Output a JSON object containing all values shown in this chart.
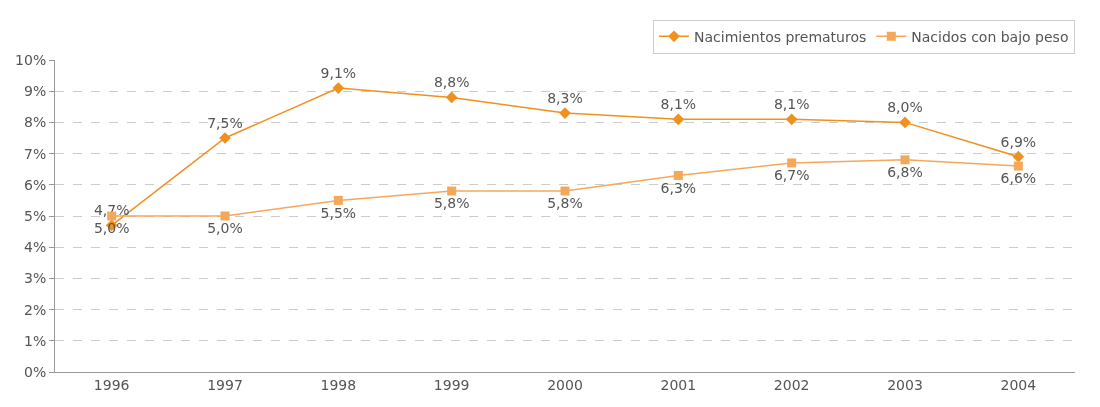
{
  "chart_data": {
    "type": "line",
    "categories": [
      "1996",
      "1997",
      "1998",
      "1999",
      "2000",
      "2001",
      "2002",
      "2003",
      "2004"
    ],
    "series": [
      {
        "name": "Nacimientos prematuros",
        "color": "#f0901e",
        "marker": "diamond",
        "values": [
          4.7,
          7.5,
          9.1,
          8.8,
          8.3,
          8.1,
          8.1,
          8.0,
          6.9
        ],
        "value_labels": [
          "4,7%",
          "7,5%",
          "9,1%",
          "8,8%",
          "8,3%",
          "8,1%",
          "8,1%",
          "8,0%",
          "6,9%"
        ]
      },
      {
        "name": "Nacidos con bajo peso",
        "color": "#f5a85a",
        "marker": "square",
        "values": [
          5.0,
          5.0,
          5.5,
          5.8,
          5.8,
          6.3,
          6.7,
          6.8,
          6.6
        ],
        "value_labels": [
          "5,0%",
          "5,0%",
          "5,5%",
          "5,8%",
          "5,8%",
          "6,3%",
          "6,7%",
          "6,8%",
          "6,6%"
        ]
      }
    ],
    "ylim": [
      0,
      10
    ],
    "yticks": [
      {
        "value": 0,
        "label": "0%"
      },
      {
        "value": 1,
        "label": "1%"
      },
      {
        "value": 2,
        "label": "2%"
      },
      {
        "value": 3,
        "label": "3%"
      },
      {
        "value": 4,
        "label": "4%"
      },
      {
        "value": 5,
        "label": "5%"
      },
      {
        "value": 6,
        "label": "6%"
      },
      {
        "value": 7,
        "label": "7%"
      },
      {
        "value": 8,
        "label": "8%"
      },
      {
        "value": 9,
        "label": "9%"
      },
      {
        "value": 10,
        "label": "10%"
      }
    ],
    "grid": "y",
    "legend": "top right",
    "line_style": "solid"
  }
}
